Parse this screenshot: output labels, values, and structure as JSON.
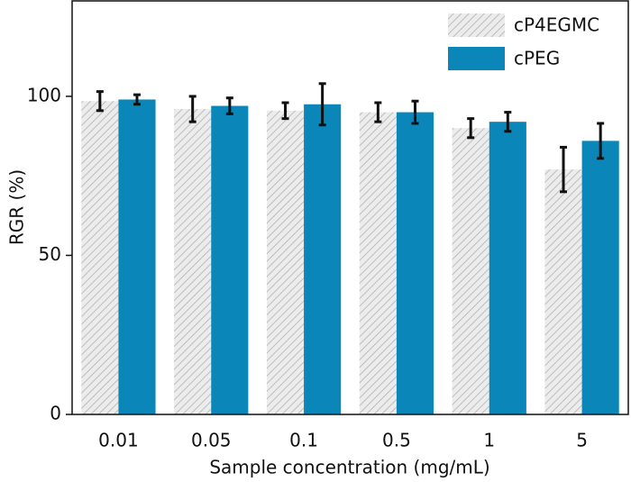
{
  "chart_data": {
    "type": "bar",
    "x_label": "Sample concentration (mg/mL)",
    "y_label": "RGR (%)",
    "categories": [
      "0.01",
      "0.05",
      "0.1",
      "0.5",
      "1",
      "5"
    ],
    "series": [
      {
        "name": "cP4EGMC",
        "color": "#d4d4d4",
        "values": [
          98.5,
          96,
          95.5,
          95,
          90,
          77
        ],
        "errors": [
          3,
          4,
          2.5,
          3,
          3,
          7
        ]
      },
      {
        "name": "cPEG",
        "color": "#0a87b8",
        "values": [
          99,
          97,
          97.5,
          95,
          92,
          86
        ],
        "errors": [
          1.5,
          2.5,
          6.5,
          3.5,
          3,
          5.5
        ]
      }
    ],
    "ylim": [
      0,
      130
    ],
    "yticks": [
      0,
      50,
      100
    ],
    "legend": "upper right"
  }
}
